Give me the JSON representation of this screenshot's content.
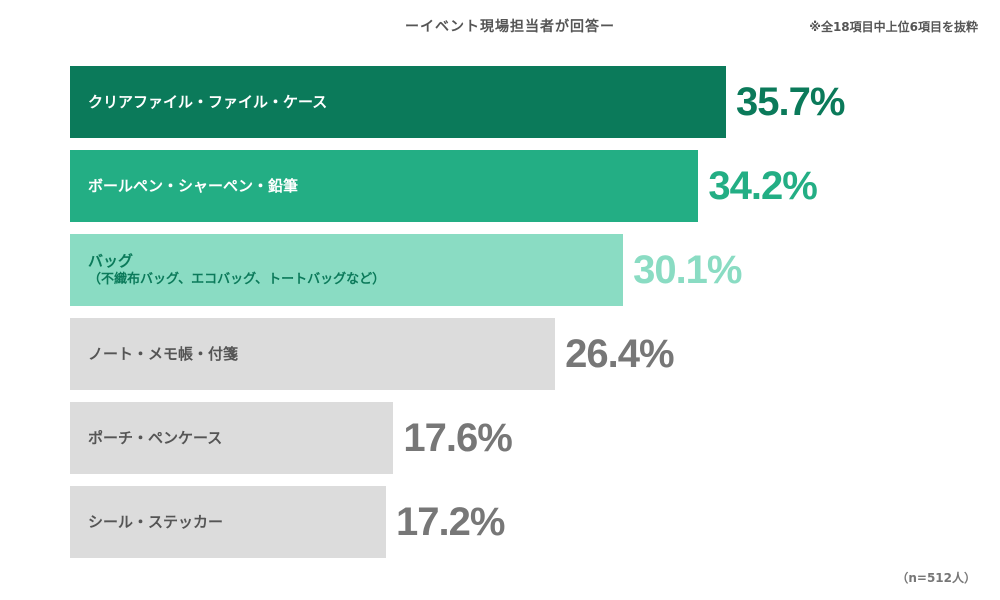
{
  "chart_data": {
    "type": "bar",
    "orientation": "horizontal",
    "subtitle": "ーイベント現場担当者が回答ー",
    "note": "※全18項目中上位6項目を抜粋",
    "sample_size": "（n=512人）",
    "xlim": [
      0,
      40
    ],
    "grid": false,
    "categories": [
      "クリアファイル・ファイル・ケース",
      "ボールペン・シャーペン・鉛筆",
      "バッグ",
      "ノート・メモ帳・付箋",
      "ポーチ・ペンケース",
      "シール・ステッカー"
    ],
    "sublabels": [
      "",
      "",
      "（不織布バッグ、エコバッグ、トートバッグなど）",
      "",
      "",
      ""
    ],
    "values": [
      35.7,
      34.2,
      30.1,
      26.4,
      17.6,
      17.2
    ],
    "value_labels": [
      "35.7%",
      "34.2%",
      "30.1%",
      "26.4%",
      "17.6%",
      "17.2%"
    ],
    "bar_colors": [
      "#0b7a5a",
      "#23ae84",
      "#8adcc3",
      "#dcdcdc",
      "#dcdcdc",
      "#dcdcdc"
    ],
    "label_colors": [
      "#ffffff",
      "#ffffff",
      "#0b7a5a",
      "#555555",
      "#555555",
      "#555555"
    ],
    "value_colors": [
      "#0b7a5a",
      "#23ae84",
      "#8adcc3",
      "#777777",
      "#777777",
      "#777777"
    ]
  }
}
